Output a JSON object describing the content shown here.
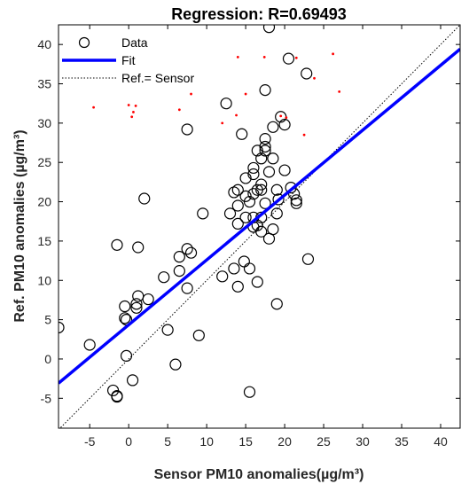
{
  "chart_data": {
    "type": "scatter",
    "title": "Regression: R=0.69493",
    "xlabel": "Sensor PM10 anomalies(µg/m³)",
    "ylabel": "Ref. PM10 anomalies (µg/m³)",
    "xlim": [
      -9,
      42.5
    ],
    "ylim": [
      -8.8,
      42.5
    ],
    "xticks": [
      -5,
      0,
      5,
      10,
      15,
      20,
      25,
      30,
      35,
      40
    ],
    "yticks": [
      -5,
      0,
      5,
      10,
      15,
      20,
      25,
      30,
      35,
      40
    ],
    "grid": false,
    "legend_position": "top-left",
    "legend": [
      {
        "label": "Data",
        "marker": "open-circle"
      },
      {
        "label": "Fit",
        "marker": "line",
        "color": "#0000FF"
      },
      {
        "label": "Ref.= Sensor",
        "marker": "dotted-line",
        "color": "#000000"
      }
    ],
    "fit_line": {
      "slope": 0.825,
      "intercept": 4.35
    },
    "identity_line": {
      "slope": 1,
      "intercept": 0
    },
    "series": [
      {
        "name": "Data",
        "points": [
          [
            -9,
            4
          ],
          [
            -5,
            1.8
          ],
          [
            -2,
            -4
          ],
          [
            -1.5,
            -4.7
          ],
          [
            -1.5,
            -4.8
          ],
          [
            -1.5,
            14.5
          ],
          [
            -0.5,
            6.7
          ],
          [
            -0.5,
            5.2
          ],
          [
            -0.3,
            0.4
          ],
          [
            -0.3,
            5
          ],
          [
            0.5,
            -2.7
          ],
          [
            1,
            6.5
          ],
          [
            1,
            7
          ],
          [
            1.2,
            8
          ],
          [
            1.2,
            14.2
          ],
          [
            2,
            20.4
          ],
          [
            2.5,
            7.6
          ],
          [
            4.5,
            10.4
          ],
          [
            5,
            3.7
          ],
          [
            6,
            -0.7
          ],
          [
            6.5,
            13
          ],
          [
            6.5,
            11.2
          ],
          [
            7.5,
            14
          ],
          [
            7.5,
            9
          ],
          [
            7.5,
            29.2
          ],
          [
            8,
            13.5
          ],
          [
            9,
            3
          ],
          [
            9.5,
            18.5
          ],
          [
            12,
            10.5
          ],
          [
            12.5,
            32.5
          ],
          [
            13,
            18.5
          ],
          [
            13.5,
            11.5
          ],
          [
            13.5,
            21.2
          ],
          [
            14,
            9.2
          ],
          [
            14,
            21.5
          ],
          [
            14,
            19.5
          ],
          [
            14,
            17.2
          ],
          [
            14.5,
            28.6
          ],
          [
            14.8,
            12.4
          ],
          [
            15,
            23
          ],
          [
            15,
            20.7
          ],
          [
            15,
            18
          ],
          [
            15.5,
            11.5
          ],
          [
            15.5,
            20
          ],
          [
            15.5,
            -4.2
          ],
          [
            16,
            16.8
          ],
          [
            16,
            18
          ],
          [
            16,
            21
          ],
          [
            16,
            23.5
          ],
          [
            16,
            24.3
          ],
          [
            16.5,
            9.8
          ],
          [
            16.5,
            17
          ],
          [
            16.5,
            21.5
          ],
          [
            16.5,
            26.5
          ],
          [
            17,
            16.2
          ],
          [
            17,
            18
          ],
          [
            17,
            22.2
          ],
          [
            17,
            21.5
          ],
          [
            17,
            25.5
          ],
          [
            17.5,
            34.2
          ],
          [
            17.5,
            26.5
          ],
          [
            17.5,
            27
          ],
          [
            17.5,
            28
          ],
          [
            17.5,
            19.8
          ],
          [
            18,
            23.8
          ],
          [
            18,
            42.2
          ],
          [
            18,
            15.3
          ],
          [
            18.5,
            25.5
          ],
          [
            18.5,
            29.5
          ],
          [
            18.5,
            16.5
          ],
          [
            19,
            18.5
          ],
          [
            19,
            21.5
          ],
          [
            19,
            7
          ],
          [
            19.2,
            20.3
          ],
          [
            19.5,
            30.8
          ],
          [
            20,
            29.8
          ],
          [
            20,
            24
          ],
          [
            20.5,
            38.2
          ],
          [
            20.8,
            21.8
          ],
          [
            21.2,
            21
          ],
          [
            21.5,
            20.2
          ],
          [
            21.5,
            19.8
          ],
          [
            22.8,
            36.3
          ],
          [
            23,
            12.7
          ]
        ]
      },
      {
        "name": "",
        "color": "#FF0000",
        "points": [
          [
            -4.5,
            32
          ],
          [
            0,
            32.3
          ],
          [
            0.4,
            30.8
          ],
          [
            0.6,
            31.4
          ],
          [
            0.9,
            32.2
          ],
          [
            6.5,
            31.7
          ],
          [
            8,
            33.7
          ],
          [
            12,
            30
          ],
          [
            13.8,
            31
          ],
          [
            14,
            38.4
          ],
          [
            15,
            33.7
          ],
          [
            17.4,
            38.4
          ],
          [
            19.5,
            30.9
          ],
          [
            20.2,
            30.7
          ],
          [
            21.5,
            38.3
          ],
          [
            22.5,
            28.5
          ],
          [
            23.8,
            35.7
          ],
          [
            26.2,
            38.8
          ],
          [
            27,
            34
          ]
        ]
      }
    ]
  }
}
